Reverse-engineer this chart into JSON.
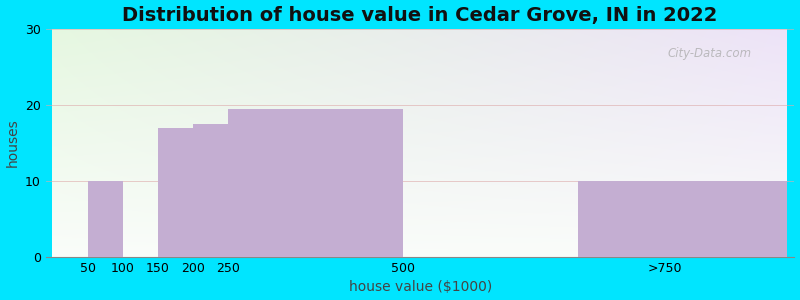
{
  "title": "Distribution of house value in Cedar Grove, IN in 2022",
  "xlabel": "house value ($1000)",
  "ylabel": "houses",
  "bar_edges": [
    0,
    50,
    100,
    150,
    200,
    250,
    500,
    750,
    1050
  ],
  "values": [
    0,
    10,
    0,
    17,
    17.5,
    19.5,
    0,
    10,
    0
  ],
  "bar_color": "#c4aed2",
  "ylim": [
    0,
    30
  ],
  "yticks": [
    0,
    10,
    20,
    30
  ],
  "xtick_positions": [
    50,
    100,
    150,
    200,
    250,
    500,
    875
  ],
  "xtick_labels": [
    "50",
    "100",
    "150",
    "200",
    "250",
    "500",
    ">750"
  ],
  "background_outer": "#00e5ff",
  "watermark": "City-Data.com",
  "title_fontsize": 14,
  "label_fontsize": 10,
  "tick_fontsize": 9,
  "grid_color": "#ddaaaa",
  "spine_color": "#888888"
}
